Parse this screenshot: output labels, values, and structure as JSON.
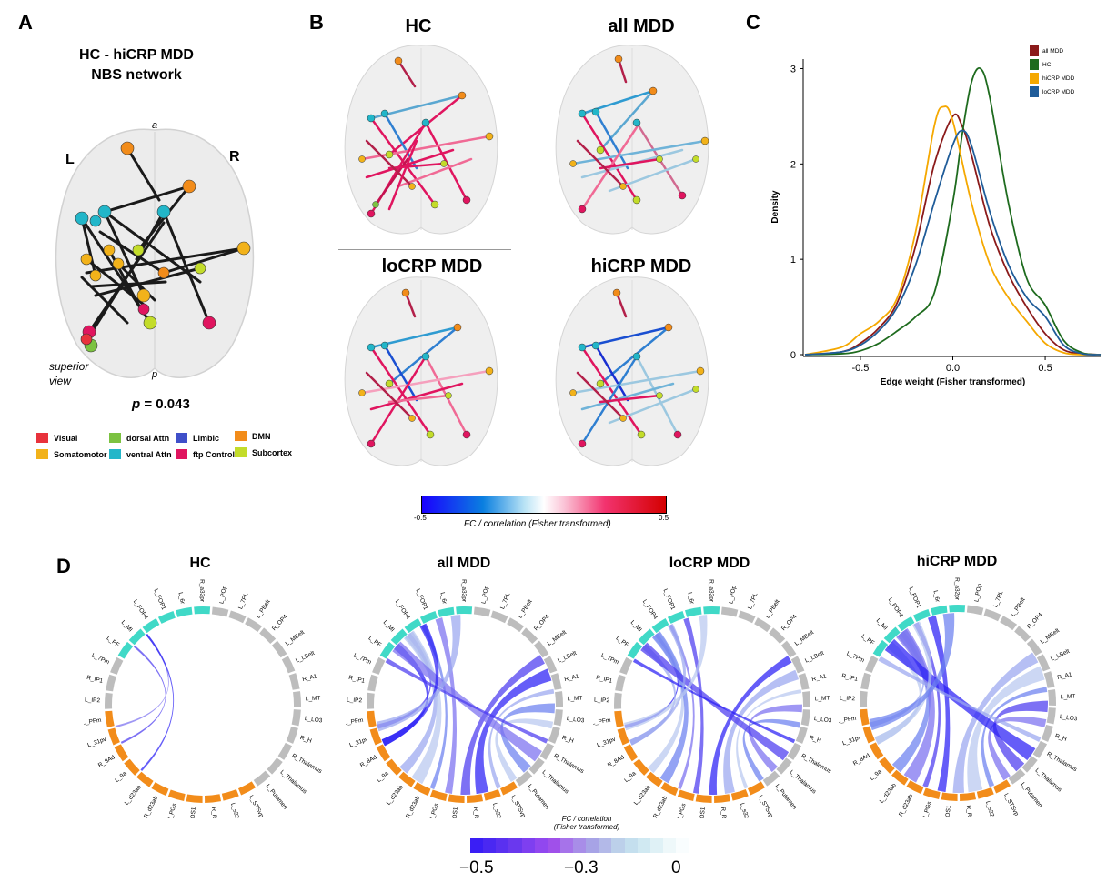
{
  "panels": {
    "A": {
      "letter": "A",
      "title_line1": "HC - hiCRP MDD",
      "title_line2": "NBS network",
      "orient_a": "a",
      "orient_p": "p",
      "orient_L": "L",
      "orient_R": "R",
      "view_line1": "superior",
      "view_line2": "view",
      "p_prefix": "p",
      "p_value": " = 0.043",
      "legend": [
        {
          "label": "Visual",
          "color": "#e8323c"
        },
        {
          "label": "dorsal Attn",
          "color": "#7cc241"
        },
        {
          "label": "Limbic",
          "color": "#3f4fc9"
        },
        {
          "label": "DMN",
          "color": "#f28c1a"
        },
        {
          "label": "Somatomotor",
          "color": "#f2b21a"
        },
        {
          "label": "ventral Attn",
          "color": "#22b6c9"
        },
        {
          "label": "ftp Control",
          "color": "#e0155f"
        },
        {
          "label": "Subcortex",
          "color": "#c3dc2a"
        }
      ]
    },
    "B": {
      "letter": "B",
      "titles": [
        "HC",
        "all MDD",
        "loCRP MDD",
        "hiCRP MDD"
      ],
      "colorbar_min": "-0.5",
      "colorbar_max": "0.5",
      "colorbar_label": "FC / correlation (Fisher transformed)"
    },
    "C": {
      "letter": "C"
    },
    "D": {
      "letter": "D",
      "titles": [
        "HC",
        "all MDD",
        "loCRP MDD",
        "hiCRP MDD"
      ],
      "colorbar_label_1": "FC / correlation",
      "colorbar_label_2": "(Fisher transformed)",
      "colorbar_ticks": [
        "−0.5",
        "−0.3",
        "0"
      ],
      "chord_labels": [
        "L_31pv",
        "L_PFm",
        "L_IP2",
        "R_IP1",
        "L_7Pm",
        "L_PF",
        "L_MI",
        "L_FOP4",
        "L_FOP1",
        "L_6r",
        "R_a32pr",
        "L_POp",
        "L_7PL",
        "L_PBelt",
        "R_OP4",
        "L_MBelt",
        "L_LBelt",
        "R_A1",
        "L_MT",
        "L_LO3",
        "R_H",
        "R_Thalamus",
        "L_Thalamus",
        "L_Putamen",
        "L_STSvp",
        "L_s32",
        "R_RSC",
        "R_POS1",
        "R_PGs",
        "R_d23ab",
        "L_d23ab",
        "L_9a",
        "R_8Ad"
      ]
    }
  },
  "chart_data": {
    "type": "line",
    "title": "",
    "xlabel": "Edge weight (Fisher transformed)",
    "ylabel": "Density",
    "xlim": [
      -0.8,
      0.8
    ],
    "ylim": [
      0,
      3.1
    ],
    "xticks": [
      "-0.5",
      "0.0",
      "0.5"
    ],
    "yticks": [
      "0",
      "1",
      "2",
      "3"
    ],
    "legend_position": "top-right",
    "series": [
      {
        "name": "all MDD",
        "color": "#8b1a1a",
        "x": [
          -0.8,
          -0.6,
          -0.5,
          -0.4,
          -0.3,
          -0.2,
          -0.1,
          0.0,
          0.05,
          0.1,
          0.2,
          0.3,
          0.4,
          0.5,
          0.6,
          0.7,
          0.8
        ],
        "y": [
          0,
          0.03,
          0.12,
          0.28,
          0.55,
          1.15,
          2.0,
          2.5,
          2.4,
          2.1,
          1.35,
          0.85,
          0.5,
          0.22,
          0.05,
          0.01,
          0
        ]
      },
      {
        "name": "HC",
        "color": "#1e6b1e",
        "x": [
          -0.8,
          -0.6,
          -0.5,
          -0.4,
          -0.3,
          -0.2,
          -0.1,
          0.0,
          0.05,
          0.1,
          0.15,
          0.2,
          0.3,
          0.4,
          0.5,
          0.6,
          0.7,
          0.8
        ],
        "y": [
          0,
          0.01,
          0.04,
          0.12,
          0.25,
          0.4,
          0.65,
          1.6,
          2.3,
          2.85,
          3.0,
          2.7,
          1.6,
          0.8,
          0.52,
          0.15,
          0.02,
          0
        ]
      },
      {
        "name": "hiCRP MDD",
        "color": "#f5a800",
        "x": [
          -0.8,
          -0.6,
          -0.5,
          -0.4,
          -0.3,
          -0.2,
          -0.1,
          -0.05,
          0.0,
          0.1,
          0.2,
          0.3,
          0.4,
          0.5,
          0.6,
          0.7,
          0.8
        ],
        "y": [
          0,
          0.08,
          0.22,
          0.35,
          0.6,
          1.3,
          2.4,
          2.6,
          2.45,
          1.6,
          0.95,
          0.6,
          0.35,
          0.12,
          0.02,
          0,
          0
        ]
      },
      {
        "name": "loCRP MDD",
        "color": "#1f5c99",
        "x": [
          -0.8,
          -0.6,
          -0.5,
          -0.4,
          -0.3,
          -0.2,
          -0.1,
          0.0,
          0.05,
          0.1,
          0.2,
          0.3,
          0.4,
          0.5,
          0.6,
          0.7,
          0.8
        ],
        "y": [
          0,
          0.03,
          0.1,
          0.25,
          0.5,
          0.95,
          1.6,
          2.2,
          2.35,
          2.2,
          1.5,
          0.95,
          0.6,
          0.4,
          0.1,
          0.01,
          0
        ]
      }
    ]
  }
}
